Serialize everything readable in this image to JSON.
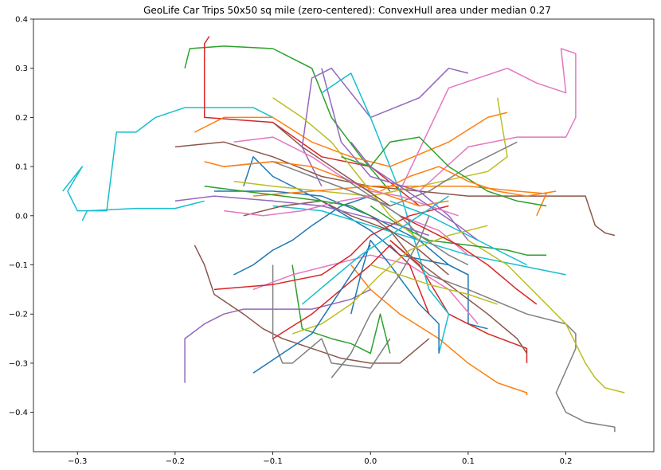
{
  "chart_data": {
    "type": "line",
    "title": "GeoLife Car Trips 50x50 sq mile (zero-centered): ConvexHull area under median 0.27",
    "xlabel": "",
    "ylabel": "",
    "xlim": [
      -0.345,
      0.29
    ],
    "ylim": [
      -0.48,
      0.4
    ],
    "xticks": [
      -0.3,
      -0.2,
      -0.1,
      0.0,
      0.1,
      0.2
    ],
    "xtick_labels": [
      "−0.3",
      "−0.2",
      "−0.1",
      "0.0",
      "0.1",
      "0.2"
    ],
    "yticks": [
      0.4,
      0.3,
      0.2,
      0.1,
      0.0,
      -0.1,
      -0.2,
      -0.3,
      -0.4
    ],
    "ytick_labels": [
      "0.4",
      "0.3",
      "0.2",
      "0.1",
      "0.0",
      "−0.1",
      "−0.2",
      "−0.3",
      "−0.4"
    ],
    "grid": false,
    "legend": "none",
    "palette": [
      "#1f77b4",
      "#ff7f0e",
      "#2ca02c",
      "#d62728",
      "#9467bd",
      "#8c564b",
      "#e377c2",
      "#7f7f7f",
      "#bcbd22",
      "#17becf"
    ],
    "series": [
      {
        "color": "#17becf",
        "x": [
          -0.315,
          -0.295,
          -0.31,
          -0.3,
          -0.27,
          -0.26,
          -0.24,
          -0.22,
          -0.19,
          -0.16,
          -0.12,
          -0.1
        ],
        "y": [
          0.05,
          0.1,
          0.05,
          0.01,
          0.01,
          0.17,
          0.17,
          0.2,
          0.22,
          0.22,
          0.22,
          0.2
        ]
      },
      {
        "color": "#17becf",
        "x": [
          -0.295,
          -0.29,
          -0.24,
          -0.2,
          -0.17
        ],
        "y": [
          -0.01,
          0.01,
          0.015,
          0.015,
          0.03
        ]
      },
      {
        "color": "#2ca02c",
        "x": [
          -0.19,
          -0.185,
          -0.15,
          -0.1,
          -0.06,
          -0.04,
          -0.01,
          0.02
        ],
        "y": [
          0.3,
          0.34,
          0.345,
          0.34,
          0.3,
          0.2,
          0.12,
          0.05
        ]
      },
      {
        "color": "#d62728",
        "x": [
          -0.165,
          -0.17,
          -0.17,
          -0.1,
          -0.05,
          0.0,
          0.05
        ],
        "y": [
          0.365,
          0.35,
          0.2,
          0.19,
          0.12,
          0.1,
          0.02
        ]
      },
      {
        "color": "#ff7f0e",
        "x": [
          -0.18,
          -0.15,
          -0.1,
          -0.06,
          -0.02,
          0.02,
          0.08,
          0.12,
          0.14
        ],
        "y": [
          0.17,
          0.2,
          0.2,
          0.15,
          0.12,
          0.1,
          0.15,
          0.2,
          0.21
        ]
      },
      {
        "color": "#e377c2",
        "x": [
          0.03,
          0.08,
          0.14,
          0.17,
          0.2,
          0.195,
          0.21,
          0.21,
          0.2,
          0.15,
          0.1,
          0.05
        ],
        "y": [
          0.05,
          0.26,
          0.3,
          0.27,
          0.25,
          0.34,
          0.33,
          0.2,
          0.16,
          0.16,
          0.14,
          0.05
        ]
      },
      {
        "color": "#9467bd",
        "x": [
          -0.05,
          -0.07,
          -0.06,
          -0.04,
          0.0,
          0.05,
          0.08,
          0.1
        ],
        "y": [
          0.06,
          0.14,
          0.28,
          0.3,
          0.2,
          0.24,
          0.3,
          0.29
        ]
      },
      {
        "color": "#8c564b",
        "x": [
          -0.2,
          -0.15,
          -0.1,
          -0.05,
          0.0,
          0.05,
          0.1,
          0.15,
          0.2,
          0.22,
          0.23,
          0.24,
          0.25
        ],
        "y": [
          0.14,
          0.15,
          0.12,
          0.08,
          0.06,
          0.05,
          0.04,
          0.04,
          0.04,
          0.04,
          -0.02,
          -0.035,
          -0.04
        ]
      },
      {
        "color": "#1f77b4",
        "x": [
          -0.16,
          -0.1,
          -0.05,
          0.0,
          0.05,
          0.08,
          0.1,
          0.1,
          0.12
        ],
        "y": [
          0.05,
          0.05,
          0.04,
          0.0,
          -0.05,
          -0.1,
          -0.12,
          -0.22,
          -0.23
        ]
      },
      {
        "color": "#1f77b4",
        "x": [
          -0.13,
          -0.12,
          -0.1,
          -0.05,
          0.0,
          0.03,
          0.08,
          0.1
        ],
        "y": [
          0.06,
          0.12,
          0.08,
          0.03,
          -0.03,
          -0.08,
          -0.1,
          -0.12
        ]
      },
      {
        "color": "#17becf",
        "x": [
          -0.1,
          -0.05,
          0.0,
          0.05,
          0.1,
          0.15,
          0.2
        ],
        "y": [
          0.02,
          0.01,
          -0.02,
          -0.05,
          -0.08,
          -0.1,
          -0.12
        ]
      },
      {
        "color": "#bcbd22",
        "x": [
          -0.14,
          -0.1,
          -0.05,
          0.0,
          0.05,
          0.12,
          0.14,
          0.13
        ],
        "y": [
          0.07,
          0.06,
          0.05,
          0.04,
          0.06,
          0.09,
          0.12,
          0.24
        ]
      },
      {
        "color": "#7f7f7f",
        "x": [
          0.02,
          0.06,
          0.1,
          0.16,
          0.2,
          0.21,
          0.21,
          0.19,
          0.2,
          0.22,
          0.25,
          0.25
        ],
        "y": [
          -0.05,
          -0.12,
          -0.15,
          -0.2,
          -0.22,
          -0.24,
          -0.27,
          -0.36,
          -0.4,
          -0.42,
          -0.43,
          -0.44
        ]
      },
      {
        "color": "#bcbd22",
        "x": [
          0.1,
          0.14,
          0.2,
          0.22,
          0.23,
          0.24,
          0.26
        ],
        "y": [
          -0.05,
          -0.1,
          -0.22,
          -0.3,
          -0.33,
          -0.35,
          -0.36
        ]
      },
      {
        "color": "#ff7f0e",
        "x": [
          -0.02,
          0.0,
          0.03,
          0.07,
          0.1,
          0.13,
          0.16,
          0.16
        ],
        "y": [
          -0.1,
          -0.15,
          -0.2,
          -0.25,
          -0.3,
          -0.34,
          -0.36,
          -0.365
        ]
      },
      {
        "color": "#d62728",
        "x": [
          0.02,
          0.05,
          0.08,
          0.12,
          0.16,
          0.16
        ],
        "y": [
          -0.05,
          -0.1,
          -0.2,
          -0.24,
          -0.27,
          -0.3
        ]
      },
      {
        "color": "#9467bd",
        "x": [
          -0.19,
          -0.19,
          -0.17,
          -0.15,
          -0.13,
          -0.1,
          -0.06,
          -0.02,
          0.0
        ],
        "y": [
          -0.34,
          -0.25,
          -0.22,
          -0.2,
          -0.19,
          -0.19,
          -0.19,
          -0.17,
          -0.15
        ]
      },
      {
        "color": "#8c564b",
        "x": [
          -0.18,
          -0.17,
          -0.16,
          -0.13,
          -0.11,
          -0.09,
          -0.06,
          -0.03,
          0.0,
          0.03,
          0.06
        ],
        "y": [
          -0.06,
          -0.1,
          -0.16,
          -0.2,
          -0.23,
          -0.25,
          -0.27,
          -0.29,
          -0.3,
          -0.3,
          -0.25
        ]
      },
      {
        "color": "#7f7f7f",
        "x": [
          -0.1,
          -0.1,
          -0.09,
          -0.08,
          -0.05,
          -0.04,
          0.0,
          0.02
        ],
        "y": [
          -0.1,
          -0.25,
          -0.3,
          -0.3,
          -0.25,
          -0.3,
          -0.31,
          -0.25
        ]
      },
      {
        "color": "#2ca02c",
        "x": [
          -0.08,
          -0.07,
          -0.04,
          -0.02,
          0.0,
          0.01,
          0.02
        ],
        "y": [
          -0.1,
          -0.23,
          -0.25,
          -0.26,
          -0.28,
          -0.2,
          -0.28
        ]
      },
      {
        "color": "#e377c2",
        "x": [
          -0.12,
          -0.08,
          -0.04,
          0.0,
          0.04,
          0.08,
          0.11
        ],
        "y": [
          -0.15,
          -0.12,
          -0.1,
          -0.08,
          -0.1,
          -0.15,
          -0.22
        ]
      },
      {
        "color": "#17becf",
        "x": [
          -0.05,
          -0.02,
          0.0,
          0.03,
          0.06,
          0.08,
          0.07
        ],
        "y": [
          0.25,
          0.29,
          0.2,
          0.05,
          -0.15,
          -0.2,
          -0.28
        ]
      },
      {
        "color": "#1f77b4",
        "x": [
          -0.14,
          -0.12,
          -0.1,
          -0.08,
          -0.06,
          -0.03,
          0.0
        ],
        "y": [
          -0.12,
          -0.1,
          -0.07,
          -0.05,
          -0.02,
          0.02,
          0.04
        ]
      },
      {
        "color": "#ff7f0e",
        "x": [
          -0.12,
          -0.06,
          0.0,
          0.05,
          0.1,
          0.15,
          0.18,
          0.17
        ],
        "y": [
          0.04,
          0.05,
          0.06,
          0.06,
          0.06,
          0.05,
          0.045,
          0.0
        ]
      },
      {
        "color": "#2ca02c",
        "x": [
          0.0,
          0.03,
          0.06,
          0.1,
          0.14,
          0.16,
          0.18
        ],
        "y": [
          0.02,
          -0.02,
          -0.05,
          -0.06,
          -0.07,
          -0.08,
          -0.08
        ]
      },
      {
        "color": "#d62728",
        "x": [
          -0.16,
          -0.1,
          -0.05,
          -0.02,
          0.0,
          0.04,
          0.08
        ],
        "y": [
          -0.15,
          -0.14,
          -0.12,
          -0.08,
          -0.04,
          0.0,
          0.02
        ]
      },
      {
        "color": "#9467bd",
        "x": [
          -0.05,
          -0.03,
          0.0,
          0.05,
          0.08,
          0.1
        ],
        "y": [
          0.3,
          0.15,
          0.08,
          0.05,
          0.0,
          -0.05
        ]
      },
      {
        "color": "#8c564b",
        "x": [
          -0.13,
          -0.09,
          -0.05,
          -0.02,
          0.02,
          0.05,
          0.08
        ],
        "y": [
          0.0,
          0.02,
          0.03,
          0.0,
          -0.03,
          -0.07,
          -0.12
        ]
      },
      {
        "color": "#7f7f7f",
        "x": [
          -0.15,
          -0.1,
          -0.06,
          -0.02,
          0.02,
          0.06,
          0.1,
          0.15
        ],
        "y": [
          0.1,
          0.11,
          0.08,
          0.05,
          0.02,
          0.05,
          0.1,
          0.15
        ]
      },
      {
        "color": "#bcbd22",
        "x": [
          -0.1,
          -0.07,
          -0.04,
          -0.02,
          0.0,
          0.02,
          0.05
        ],
        "y": [
          0.24,
          0.2,
          0.15,
          0.1,
          0.05,
          0.0,
          -0.05
        ]
      },
      {
        "color": "#e377c2",
        "x": [
          -0.15,
          -0.11,
          -0.07,
          -0.03,
          0.0,
          0.03,
          0.07,
          0.1
        ],
        "y": [
          0.01,
          0.0,
          0.01,
          0.03,
          0.04,
          0.0,
          -0.03,
          -0.08
        ]
      },
      {
        "color": "#1f77b4",
        "x": [
          -0.02,
          -0.01,
          0.0,
          0.02,
          0.05,
          0.07,
          0.07
        ],
        "y": [
          -0.2,
          -0.12,
          -0.05,
          -0.1,
          -0.18,
          -0.22,
          -0.28
        ]
      },
      {
        "color": "#ff7f0e",
        "x": [
          -0.17,
          -0.15,
          -0.1,
          -0.06,
          -0.02,
          0.02,
          0.05,
          0.08
        ],
        "y": [
          0.11,
          0.1,
          0.11,
          0.1,
          0.07,
          0.04,
          0.02,
          0.03
        ]
      },
      {
        "color": "#2ca02c",
        "x": [
          -0.03,
          0.0,
          0.02,
          0.05,
          0.08,
          0.12,
          0.15,
          0.18
        ],
        "y": [
          0.12,
          0.1,
          0.15,
          0.16,
          0.1,
          0.05,
          0.03,
          0.02
        ]
      },
      {
        "color": "#d62728",
        "x": [
          -0.1,
          -0.06,
          -0.03,
          0.0,
          0.02,
          0.04,
          0.06
        ],
        "y": [
          -0.25,
          -0.2,
          -0.15,
          -0.1,
          -0.06,
          -0.1,
          -0.2
        ]
      },
      {
        "color": "#17becf",
        "x": [
          0.02,
          0.06,
          0.1,
          0.14,
          0.16
        ],
        "y": [
          0.03,
          0.0,
          -0.04,
          -0.08,
          -0.1
        ]
      },
      {
        "color": "#9467bd",
        "x": [
          -0.2,
          -0.16,
          -0.1,
          -0.05,
          -0.01,
          0.03,
          0.06
        ],
        "y": [
          0.03,
          0.04,
          0.03,
          0.02,
          0.0,
          -0.02,
          -0.04
        ]
      },
      {
        "color": "#8c564b",
        "x": [
          0.0,
          0.02,
          0.04,
          0.08,
          0.12,
          0.15,
          0.16
        ],
        "y": [
          0.0,
          -0.03,
          -0.08,
          -0.14,
          -0.2,
          -0.25,
          -0.28
        ]
      },
      {
        "color": "#7f7f7f",
        "x": [
          -0.04,
          -0.02,
          0.0,
          0.03,
          0.05,
          0.06
        ],
        "y": [
          -0.33,
          -0.28,
          -0.2,
          -0.12,
          -0.05,
          0.0
        ]
      },
      {
        "color": "#bcbd22",
        "x": [
          -0.08,
          -0.05,
          -0.02,
          0.01,
          0.04,
          0.08,
          0.12
        ],
        "y": [
          -0.24,
          -0.22,
          -0.18,
          -0.12,
          -0.07,
          -0.04,
          -0.02
        ]
      },
      {
        "color": "#e377c2",
        "x": [
          -0.14,
          -0.1,
          -0.06,
          -0.03,
          0.0,
          0.03,
          0.06,
          0.09
        ],
        "y": [
          0.15,
          0.16,
          0.12,
          0.08,
          0.05,
          0.04,
          0.02,
          0.0
        ]
      },
      {
        "color": "#1f77b4",
        "x": [
          -0.12,
          -0.09,
          -0.06,
          -0.04,
          -0.02,
          0.0
        ],
        "y": [
          -0.32,
          -0.28,
          -0.24,
          -0.18,
          -0.12,
          -0.06
        ]
      },
      {
        "color": "#ff7f0e",
        "x": [
          0.01,
          0.04,
          0.07,
          0.1,
          0.13,
          0.16,
          0.19
        ],
        "y": [
          0.05,
          0.08,
          0.1,
          0.07,
          0.05,
          0.04,
          0.05
        ]
      },
      {
        "color": "#2ca02c",
        "x": [
          -0.17,
          -0.13,
          -0.09,
          -0.05,
          -0.02,
          0.0
        ],
        "y": [
          0.06,
          0.05,
          0.04,
          0.03,
          0.02,
          0.0
        ]
      },
      {
        "color": "#d62728",
        "x": [
          0.03,
          0.06,
          0.09,
          0.12,
          0.15,
          0.17
        ],
        "y": [
          0.0,
          -0.03,
          -0.06,
          -0.1,
          -0.15,
          -0.18
        ]
      },
      {
        "color": "#9467bd",
        "x": [
          -0.02,
          0.0,
          0.03,
          0.06,
          0.09,
          0.11
        ],
        "y": [
          0.15,
          0.1,
          0.06,
          0.02,
          -0.02,
          -0.05
        ]
      },
      {
        "color": "#8c564b",
        "x": [
          -0.1,
          -0.07,
          -0.04,
          -0.01,
          0.02
        ],
        "y": [
          0.19,
          0.14,
          0.1,
          0.06,
          0.02
        ]
      },
      {
        "color": "#7f7f7f",
        "x": [
          -0.03,
          0.0,
          0.03,
          0.05,
          0.08,
          0.1
        ],
        "y": [
          0.08,
          0.04,
          0.0,
          -0.04,
          -0.08,
          -0.1
        ]
      },
      {
        "color": "#17becf",
        "x": [
          -0.07,
          -0.04,
          -0.01,
          0.02,
          0.05,
          0.08
        ],
        "y": [
          -0.18,
          -0.13,
          -0.08,
          -0.04,
          0.0,
          0.04
        ]
      },
      {
        "color": "#bcbd22",
        "x": [
          0.0,
          0.03,
          0.06,
          0.1,
          0.13
        ],
        "y": [
          -0.1,
          -0.12,
          -0.14,
          -0.16,
          -0.18
        ]
      }
    ]
  }
}
